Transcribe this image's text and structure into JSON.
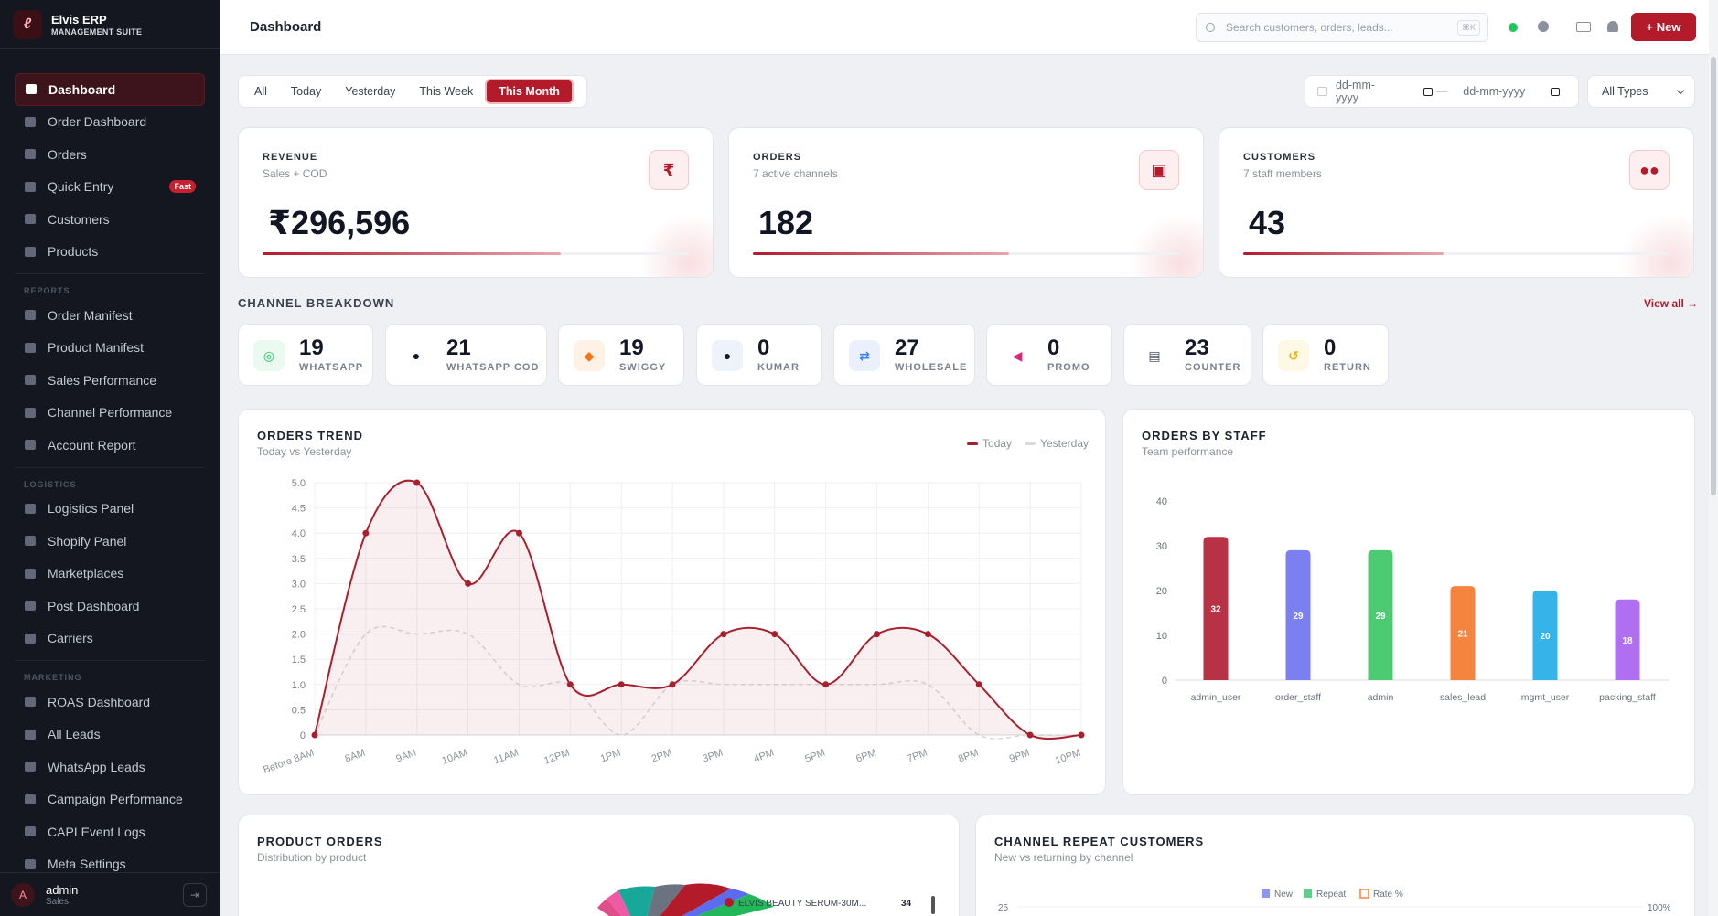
{
  "brand": {
    "name": "Elvis ERP",
    "subtitle": "MANAGEMENT SUITE",
    "logo_icon": "feather-icon"
  },
  "sidebar": {
    "main": [
      {
        "label": "Dashboard",
        "icon": "home-icon",
        "active": true
      },
      {
        "label": "Order Dashboard",
        "icon": "chart-icon"
      },
      {
        "label": "Orders",
        "icon": "bag-icon"
      },
      {
        "label": "Quick Entry",
        "icon": "bolt-icon",
        "badge": "Fast"
      },
      {
        "label": "Customers",
        "icon": "users-icon"
      },
      {
        "label": "Products",
        "icon": "box-icon"
      }
    ],
    "reports_title": "REPORTS",
    "reports": [
      {
        "label": "Order Manifest",
        "icon": "file-icon"
      },
      {
        "label": "Product Manifest",
        "icon": "table-icon"
      },
      {
        "label": "Sales Performance",
        "icon": "line-chart-icon"
      },
      {
        "label": "Channel Performance",
        "icon": "channel-icon"
      },
      {
        "label": "Account Report",
        "icon": "bank-icon"
      }
    ],
    "logistics_title": "LOGISTICS",
    "logistics": [
      {
        "label": "Logistics Panel",
        "icon": "truck-icon"
      },
      {
        "label": "Shopify Panel",
        "icon": "shopify-icon"
      },
      {
        "label": "Marketplaces",
        "icon": "store-icon"
      },
      {
        "label": "Post Dashboard",
        "icon": "mail-icon"
      },
      {
        "label": "Carriers",
        "icon": "carrier-icon"
      }
    ],
    "marketing_title": "MARKETING",
    "marketing": [
      {
        "label": "ROAS Dashboard",
        "icon": "chart-icon"
      },
      {
        "label": "All Leads",
        "icon": "user-plus-icon"
      },
      {
        "label": "WhatsApp Leads",
        "icon": "whatsapp-icon"
      },
      {
        "label": "Campaign Performance",
        "icon": "infinity-icon"
      },
      {
        "label": "CAPI Event Logs",
        "icon": "code-icon"
      },
      {
        "label": "Meta Settings",
        "icon": "gear-icon"
      }
    ]
  },
  "user": {
    "initial": "A",
    "name": "admin",
    "role": "Sales"
  },
  "topbar": {
    "title": "Dashboard",
    "search_placeholder": "Search customers, orders, leads...",
    "search_shortcut": "⌘K",
    "new_button": "+ New"
  },
  "filters": {
    "ranges": [
      "All",
      "Today",
      "Yesterday",
      "This Week",
      "This Month"
    ],
    "active": "This Month",
    "date_from": "dd-mm-yyyy",
    "date_to": "dd-mm-yyyy",
    "date_separator": "—",
    "type_select": "All Types"
  },
  "kpis": [
    {
      "label": "REVENUE",
      "sub": "Sales + COD",
      "value": "₹296,596",
      "icon": "rupee-icon",
      "glyph": "₹",
      "progress": 0.7
    },
    {
      "label": "ORDERS",
      "sub": "7 active channels",
      "value": "182",
      "icon": "bag-icon",
      "glyph": "▣",
      "progress": 0.6
    },
    {
      "label": "CUSTOMERS",
      "sub": "7 staff members",
      "value": "43",
      "icon": "users-icon",
      "glyph": "●●",
      "progress": 0.47
    }
  ],
  "channel_breakdown": {
    "title": "CHANNEL BREAKDOWN",
    "view_all": "View all →",
    "channels": [
      {
        "count": "19",
        "name": "WHATSAPP",
        "icon": "whatsapp-icon",
        "glyph": "◎",
        "color": "#22c55e",
        "bg": "#eafaf0"
      },
      {
        "count": "21",
        "name": "WHATSAPP COD",
        "icon": "chat-icon",
        "glyph": "●",
        "color": "#111827",
        "bg": "#ffffff"
      },
      {
        "count": "19",
        "name": "SWIGGY",
        "icon": "swiggy-icon",
        "glyph": "◆",
        "color": "#f97316",
        "bg": "#fff1e6"
      },
      {
        "count": "0",
        "name": "KUMAR",
        "icon": "person-icon",
        "glyph": "●",
        "color": "#111827",
        "bg": "#eef2fb"
      },
      {
        "count": "27",
        "name": "WHOLESALE",
        "icon": "handshake-icon",
        "glyph": "⇄",
        "color": "#3b82f6",
        "bg": "#eaf1fd"
      },
      {
        "count": "0",
        "name": "PROMO",
        "icon": "megaphone-icon",
        "glyph": "◀",
        "color": "#db2777",
        "bg": "#ffffff"
      },
      {
        "count": "23",
        "name": "COUNTER",
        "icon": "register-icon",
        "glyph": "▤",
        "color": "#4b5563",
        "bg": "#ffffff"
      },
      {
        "count": "0",
        "name": "RETURN",
        "icon": "undo-icon",
        "glyph": "↺",
        "color": "#eab308",
        "bg": "#fef9e6"
      }
    ]
  },
  "orders_trend": {
    "title": "ORDERS TREND",
    "subtitle": "Today vs Yesterday",
    "legend": [
      "Today",
      "Yesterday"
    ]
  },
  "orders_by_staff": {
    "title": "ORDERS BY STAFF",
    "subtitle": "Team performance"
  },
  "product_orders": {
    "title": "PRODUCT ORDERS",
    "subtitle": "Distribution by product",
    "legend_first": "ELVIS BEAUTY SERUM-30M...",
    "legend_first_value": "34"
  },
  "channel_repeat": {
    "title": "CHANNEL REPEAT CUSTOMERS",
    "subtitle": "New vs returning by channel",
    "legend": [
      "New",
      "Repeat",
      "Rate %"
    ],
    "y_left_top": "25",
    "y_right_top": "100%"
  },
  "chart_data": [
    {
      "type": "line",
      "categories": [
        "Before 8AM",
        "8AM",
        "9AM",
        "10AM",
        "11AM",
        "12PM",
        "1PM",
        "2PM",
        "3PM",
        "4PM",
        "5PM",
        "6PM",
        "7PM",
        "8PM",
        "9PM",
        "10PM"
      ],
      "series": [
        {
          "name": "Today",
          "values": [
            0,
            4,
            5,
            3,
            4,
            1,
            1,
            1,
            2,
            2,
            1,
            2,
            2,
            1,
            0,
            0
          ],
          "color": "#a8202e"
        },
        {
          "name": "Yesterday",
          "values": [
            0,
            2,
            2,
            2,
            1,
            1,
            0,
            1,
            1,
            1,
            1,
            1,
            1,
            0,
            0,
            0
          ],
          "color": "#d7d9de"
        }
      ],
      "ylim": [
        0,
        5
      ],
      "yticks": [
        "0",
        "0.5",
        "1.0",
        "1.5",
        "2.0",
        "2.5",
        "3.0",
        "3.5",
        "4.0",
        "4.5",
        "5.0"
      ],
      "grid": true
    },
    {
      "type": "bar",
      "categories": [
        "admin_user",
        "order_staff",
        "admin",
        "sales_lead",
        "mgmt_user",
        "packing_staff"
      ],
      "values": [
        32,
        29,
        29,
        21,
        20,
        18
      ],
      "colors": [
        "#b83245",
        "#7b7ff0",
        "#4ccb73",
        "#f5843f",
        "#34b4e8",
        "#b06ef0"
      ],
      "ylim": [
        0,
        40
      ],
      "yticks": [
        "0",
        "10",
        "20",
        "30",
        "40"
      ]
    }
  ]
}
